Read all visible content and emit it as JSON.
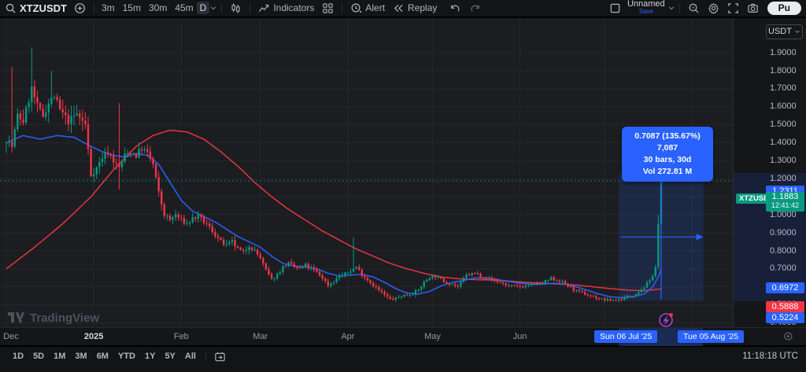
{
  "header": {
    "symbol": "XTZUSDT",
    "timeframes": [
      "3m",
      "15m",
      "30m",
      "45m"
    ],
    "selected_timeframe": "D",
    "indicators_label": "Indicators",
    "alert_label": "Alert",
    "replay_label": "Replay",
    "layout_name": "Unnamed",
    "save_label": "Save",
    "publish_label": "Pu"
  },
  "price_axis": {
    "currency": "USDT",
    "symbol_tag": "XTZUSDT",
    "labels": {
      "measure_high": "1.2311",
      "last_price": "1.1883",
      "countdown": "12:41:42",
      "ma_fast_value": "0.6972",
      "ma_slow_value": "0.5888",
      "measure_low": "0.5224"
    }
  },
  "time_axis": {
    "range_start": "Sun 06 Jul '25",
    "range_end": "Tue 05 Aug '25"
  },
  "measure_tooltip": {
    "line1": "0.7087 (135.67%) 7,087",
    "line2": "30 bars, 30d",
    "line3": "Vol 272.81 M"
  },
  "watermark": "TradingView",
  "bottom_bar": {
    "ranges": [
      "1D",
      "5D",
      "1M",
      "3M",
      "6M",
      "YTD",
      "1Y",
      "5Y",
      "All"
    ],
    "clock": "11:18:18 UTC"
  },
  "colors": {
    "up": "#089981",
    "down": "#f23645",
    "accent": "#2962ff",
    "ma_fast": "#2962ff",
    "ma_slow": "#f23645",
    "grid": "#24262c",
    "background": "#1b1d21"
  },
  "chart_data": {
    "type": "candlestick",
    "symbol": "XTZUSDT",
    "interval": "D",
    "x_unit": "days_since_2024-12-01",
    "ylim": [
      0.38,
      1.95
    ],
    "y_ticks": [
      1.9,
      1.8,
      1.7,
      1.6,
      1.5,
      1.4,
      1.3,
      1.2,
      1.1,
      1.0,
      0.9,
      0.8,
      0.7,
      0.6,
      0.5,
      0.4
    ],
    "months": [
      {
        "label": "Dec",
        "day": 0
      },
      {
        "label": "2025",
        "day": 31,
        "strong": true
      },
      {
        "label": "Feb",
        "day": 62
      },
      {
        "label": "Mar",
        "day": 90
      },
      {
        "label": "Apr",
        "day": 121
      },
      {
        "label": "May",
        "day": 151
      },
      {
        "label": "Jun",
        "day": 182
      },
      {
        "label": "",
        "day": 212
      },
      {
        "label": "",
        "day": 243
      }
    ],
    "close_keypoints": [
      [
        0,
        1.42
      ],
      [
        2,
        1.38
      ],
      [
        4,
        1.55
      ],
      [
        6,
        1.52
      ],
      [
        9,
        1.7
      ],
      [
        11,
        1.6
      ],
      [
        13,
        1.55
      ],
      [
        15,
        1.62
      ],
      [
        17,
        1.66
      ],
      [
        19,
        1.58
      ],
      [
        22,
        1.52
      ],
      [
        25,
        1.56
      ],
      [
        28,
        1.5
      ],
      [
        30,
        1.22
      ],
      [
        32,
        1.26
      ],
      [
        34,
        1.32
      ],
      [
        36,
        1.35
      ],
      [
        38,
        1.3
      ],
      [
        40,
        1.26
      ],
      [
        42,
        1.33
      ],
      [
        44,
        1.35
      ],
      [
        46,
        1.33
      ],
      [
        48,
        1.37
      ],
      [
        50,
        1.34
      ],
      [
        52,
        1.28
      ],
      [
        54,
        1.12
      ],
      [
        56,
        1.0
      ],
      [
        58,
        0.97
      ],
      [
        60,
        1.0
      ],
      [
        62,
        0.97
      ],
      [
        64,
        0.95
      ],
      [
        66,
        0.98
      ],
      [
        68,
        0.99
      ],
      [
        70,
        0.96
      ],
      [
        72,
        0.93
      ],
      [
        74,
        0.89
      ],
      [
        76,
        0.85
      ],
      [
        78,
        0.83
      ],
      [
        80,
        0.85
      ],
      [
        82,
        0.81
      ],
      [
        84,
        0.79
      ],
      [
        86,
        0.83
      ],
      [
        88,
        0.8
      ],
      [
        90,
        0.76
      ],
      [
        92,
        0.69
      ],
      [
        94,
        0.64
      ],
      [
        96,
        0.67
      ],
      [
        98,
        0.71
      ],
      [
        100,
        0.73
      ],
      [
        102,
        0.71
      ],
      [
        104,
        0.7
      ],
      [
        106,
        0.72
      ],
      [
        108,
        0.7
      ],
      [
        110,
        0.68
      ],
      [
        112,
        0.65
      ],
      [
        114,
        0.61
      ],
      [
        116,
        0.63
      ],
      [
        118,
        0.66
      ],
      [
        120,
        0.67
      ],
      [
        122,
        0.69
      ],
      [
        124,
        0.71
      ],
      [
        126,
        0.67
      ],
      [
        128,
        0.64
      ],
      [
        130,
        0.61
      ],
      [
        132,
        0.58
      ],
      [
        134,
        0.555
      ],
      [
        136,
        0.53
      ],
      [
        138,
        0.535
      ],
      [
        140,
        0.55
      ],
      [
        142,
        0.555
      ],
      [
        144,
        0.565
      ],
      [
        146,
        0.58
      ],
      [
        148,
        0.625
      ],
      [
        150,
        0.655
      ],
      [
        152,
        0.66
      ],
      [
        154,
        0.64
      ],
      [
        156,
        0.625
      ],
      [
        158,
        0.615
      ],
      [
        160,
        0.6
      ],
      [
        163,
        0.665
      ],
      [
        166,
        0.675
      ],
      [
        169,
        0.655
      ],
      [
        172,
        0.64
      ],
      [
        175,
        0.625
      ],
      [
        178,
        0.605
      ],
      [
        181,
        0.6
      ],
      [
        184,
        0.605
      ],
      [
        187,
        0.615
      ],
      [
        190,
        0.62
      ],
      [
        193,
        0.645
      ],
      [
        196,
        0.635
      ],
      [
        199,
        0.605
      ],
      [
        202,
        0.575
      ],
      [
        205,
        0.56
      ],
      [
        208,
        0.545
      ],
      [
        211,
        0.53
      ],
      [
        214,
        0.525
      ],
      [
        217,
        0.53
      ],
      [
        220,
        0.545
      ],
      [
        222,
        0.555
      ],
      [
        224,
        0.575
      ],
      [
        226,
        0.6
      ],
      [
        228,
        0.635
      ],
      [
        229,
        0.66
      ],
      [
        230,
        0.71
      ],
      [
        231,
        0.95
      ],
      [
        232,
        1.1883
      ]
    ],
    "ma_fast_keypoints": [
      [
        0,
        1.4
      ],
      [
        6,
        1.44
      ],
      [
        12,
        1.42
      ],
      [
        18,
        1.44
      ],
      [
        24,
        1.43
      ],
      [
        30,
        1.38
      ],
      [
        34,
        1.35
      ],
      [
        38,
        1.33
      ],
      [
        42,
        1.32
      ],
      [
        46,
        1.34
      ],
      [
        50,
        1.33
      ],
      [
        54,
        1.28
      ],
      [
        58,
        1.18
      ],
      [
        62,
        1.08
      ],
      [
        66,
        1.02
      ],
      [
        70,
        0.99
      ],
      [
        74,
        0.96
      ],
      [
        78,
        0.92
      ],
      [
        82,
        0.88
      ],
      [
        86,
        0.85
      ],
      [
        90,
        0.82
      ],
      [
        94,
        0.77
      ],
      [
        98,
        0.73
      ],
      [
        102,
        0.715
      ],
      [
        106,
        0.71
      ],
      [
        110,
        0.7
      ],
      [
        114,
        0.675
      ],
      [
        118,
        0.66
      ],
      [
        122,
        0.665
      ],
      [
        126,
        0.67
      ],
      [
        130,
        0.655
      ],
      [
        134,
        0.625
      ],
      [
        138,
        0.59
      ],
      [
        142,
        0.565
      ],
      [
        146,
        0.56
      ],
      [
        150,
        0.575
      ],
      [
        154,
        0.605
      ],
      [
        158,
        0.625
      ],
      [
        162,
        0.635
      ],
      [
        166,
        0.65
      ],
      [
        170,
        0.65
      ],
      [
        174,
        0.64
      ],
      [
        178,
        0.63
      ],
      [
        182,
        0.62
      ],
      [
        186,
        0.615
      ],
      [
        190,
        0.615
      ],
      [
        194,
        0.62
      ],
      [
        198,
        0.615
      ],
      [
        202,
        0.6
      ],
      [
        206,
        0.58
      ],
      [
        210,
        0.56
      ],
      [
        214,
        0.545
      ],
      [
        218,
        0.54
      ],
      [
        222,
        0.545
      ],
      [
        226,
        0.56
      ],
      [
        229,
        0.6
      ],
      [
        231,
        0.655
      ],
      [
        232,
        0.6972
      ]
    ],
    "ma_slow_keypoints": [
      [
        0,
        0.7
      ],
      [
        10,
        0.82
      ],
      [
        20,
        0.95
      ],
      [
        30,
        1.1
      ],
      [
        38,
        1.25
      ],
      [
        46,
        1.38
      ],
      [
        52,
        1.44
      ],
      [
        58,
        1.47
      ],
      [
        64,
        1.46
      ],
      [
        70,
        1.42
      ],
      [
        76,
        1.35
      ],
      [
        82,
        1.27
      ],
      [
        88,
        1.18
      ],
      [
        94,
        1.1
      ],
      [
        100,
        1.03
      ],
      [
        106,
        0.97
      ],
      [
        112,
        0.91
      ],
      [
        118,
        0.86
      ],
      [
        124,
        0.81
      ],
      [
        130,
        0.77
      ],
      [
        136,
        0.73
      ],
      [
        142,
        0.7
      ],
      [
        148,
        0.675
      ],
      [
        154,
        0.655
      ],
      [
        160,
        0.645
      ],
      [
        166,
        0.64
      ],
      [
        172,
        0.638
      ],
      [
        178,
        0.632
      ],
      [
        184,
        0.625
      ],
      [
        190,
        0.62
      ],
      [
        196,
        0.615
      ],
      [
        202,
        0.61
      ],
      [
        208,
        0.6
      ],
      [
        214,
        0.59
      ],
      [
        220,
        0.582
      ],
      [
        226,
        0.578
      ],
      [
        232,
        0.5888
      ]
    ],
    "wick_overrides": [
      [
        2,
        1.82,
        null
      ],
      [
        9,
        1.93,
        null
      ],
      [
        16,
        1.8,
        null
      ],
      [
        40,
        1.62,
        1.14
      ],
      [
        123,
        0.875,
        null
      ],
      [
        231,
        1.0,
        0.695
      ],
      [
        232,
        1.2311,
        0.93
      ]
    ],
    "last": {
      "price": 1.1883,
      "countdown": "12:41:42"
    },
    "measure": {
      "start_day": 217,
      "end_day": 247,
      "price_start": 0.5224,
      "price_end": 1.2311,
      "bars": 30,
      "days": 30,
      "change_abs": 0.7087,
      "change_pct": 135.67,
      "change_ticks": "7,087",
      "volume": "272.81 M"
    }
  }
}
